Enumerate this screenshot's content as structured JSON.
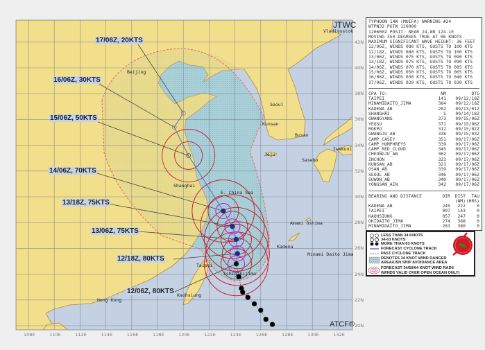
{
  "brand": {
    "top": "JTWC",
    "bottom": "ATCF®"
  },
  "warning": {
    "lines": [
      "TYPHOON 14W (MUIFA) WARNING #24",
      "WTPN32 PGTW 120900",
      "120600Z POSIT: NEAR 24.8N 124.1E",
      "MOVING 350 DEGREES TRUE AT 06 KNOTS",
      "MAXIMUM SIGNIFICANT WAVE HEIGHT: 36 FEET",
      "12/06Z, WINDS 080 KTS, GUSTS TO 100 KTS",
      "12/18Z, WINDS 080 KTS, GUSTS TO 100 KTS",
      "13/06Z, WINDS 075 KTS, GUSTS TO 090 KTS",
      "13/18Z, WINDS 075 KTS, GUSTS TO 090 KTS",
      "14/06Z, WINDS 070 KTS, GUSTS TO 085 KTS",
      "15/06Z, WINDS 050 KTS, GUSTS TO 065 KTS",
      "16/06Z, WINDS 030 KTS, GUSTS TO 040 KTS",
      "17/06Z, WINDS 020 KTS, GUSTS TO 030 KTS"
    ]
  },
  "cpa": {
    "headers": [
      "CPA TO:",
      "NM",
      "DTG"
    ],
    "rows": [
      [
        "TAIPEI",
        "141",
        "09/12/18Z"
      ],
      [
        "MINAMIDAITO_JIMA",
        "384",
        "09/12/18Z"
      ],
      [
        "KADENA_AB",
        "202",
        "09/13/01Z"
      ],
      [
        "SHANGHAI",
        "5",
        "09/14/18Z"
      ],
      [
        "GWANGYANG",
        "373",
        "09/15/06Z"
      ],
      [
        "YEOSU",
        "371",
        "09/15/06Z"
      ],
      [
        "MOKPO",
        "312",
        "09/15/02Z"
      ],
      [
        "GWANGJU_AB",
        "338",
        "09/15/03Z"
      ],
      [
        "CAMP_CASEY",
        "351",
        "09/17/06Z"
      ],
      [
        "CAMP_HUMPHREYS",
        "339",
        "09/17/06Z"
      ],
      [
        "CAMP_RED_CLOUD",
        "345",
        "09/17/06Z"
      ],
      [
        "CHEONGJU_AB",
        "362",
        "09/17/06Z"
      ],
      [
        "INCHON",
        "323",
        "09/17/06Z"
      ],
      [
        "KUNSAN_AB",
        "321",
        "09/17/06Z"
      ],
      [
        "OSAN_AB",
        "339",
        "09/17/06Z"
      ],
      [
        "SEOUL_AB",
        "346",
        "09/17/06Z"
      ],
      [
        "SUWON_AB",
        "340",
        "09/17/06Z"
      ],
      [
        "YONGSAN_AIN",
        "342",
        "09/17/06Z"
      ]
    ]
  },
  "bearing": {
    "headers": [
      "BEARING AND DISTANCE",
      "DIR",
      "DIST",
      "TAU"
    ],
    "subheaders": [
      "",
      "",
      "(NM)",
      "(HRS)"
    ],
    "rows": [
      [
        "KADENA_AB",
        "245",
        "222",
        "0"
      ],
      [
        "TAIPEI",
        "097",
        "143",
        "0"
      ],
      [
        "KAOHSIUNG",
        "057",
        "247",
        "0"
      ],
      [
        "OKIDAITO_JIMA",
        "274",
        "388",
        "0"
      ],
      [
        "MINAMIDAITO_JIMA",
        "263",
        "380",
        "0"
      ]
    ]
  },
  "legend": {
    "items": [
      "LESS THAN 34 KNOTS",
      "34-63 KNOTS",
      "MORE THAN 63 KNOTS",
      "FORECAST CYCLONE TRACK",
      "PAST CYCLONE TRACK",
      "DENOTES 34 KNOT WIND DANGER",
      "AREA/USN SHIP AVOIDANCE AREA",
      "FORECAST 34/50/64 KNOT WIND RADII",
      "(WINDS VALID OVER OPEN OCEAN ONLY)"
    ],
    "logo_text": "JOINT TYPHOON WARNING CENTER"
  },
  "axes": {
    "lon_ticks": [
      "108E",
      "110E",
      "112E",
      "114E",
      "116E",
      "118E",
      "120E",
      "122E",
      "124E",
      "126E",
      "128E",
      "130E",
      "132E"
    ],
    "lat_ticks": [
      "20N",
      "22N",
      "24N",
      "26N",
      "28N",
      "30N",
      "32N",
      "34N",
      "36N",
      "38N",
      "40N",
      "42N"
    ]
  },
  "places": [
    "Vladivostok",
    "Beijing",
    "Seoul",
    "Kunsan",
    "Busan",
    "Jeju",
    "Sasebo",
    "Iwakuni",
    "Shanghai",
    "E. China Sea",
    "Amami Oshima",
    "Kadena",
    "Minami Daito Jima",
    "Taipei",
    "Ishigakijima",
    "Kaohsiung",
    "Hong Kong"
  ],
  "forecast": [
    {
      "label": "12/06Z, 80KTS",
      "lat": 24.8,
      "lon": 124.1,
      "intensity": "more-than-63"
    },
    {
      "label": "12/18Z, 80KTS",
      "lat": 25.6,
      "lon": 124.2,
      "intensity": "more-than-63"
    },
    {
      "label": "13/06Z, 75KTS",
      "lat": 26.7,
      "lon": 124.1,
      "intensity": "more-than-63"
    },
    {
      "label": "13/18Z, 75KTS",
      "lat": 27.7,
      "lon": 123.8,
      "intensity": "more-than-63"
    },
    {
      "label": "14/06Z, 70KTS",
      "lat": 28.9,
      "lon": 123.1,
      "intensity": "more-than-63"
    },
    {
      "label": "15/06Z, 50KTS",
      "lat": 33.2,
      "lon": 120.4,
      "intensity": "34-63"
    },
    {
      "label": "16/06Z, 30KTS",
      "lat": 35.4,
      "lon": 119.3,
      "intensity": "less-than-34"
    },
    {
      "label": "17/06Z, 20KTS",
      "lat": 36.5,
      "lon": 120.0,
      "intensity": "less-than-34"
    }
  ],
  "past_track": [
    {
      "lat": 23.8,
      "lon": 124.3
    },
    {
      "lat": 22.9,
      "lon": 124.5
    },
    {
      "lat": 22.6,
      "lon": 124.6
    },
    {
      "lat": 22.2,
      "lon": 125.0
    },
    {
      "lat": 21.7,
      "lon": 125.5
    },
    {
      "lat": 21.2,
      "lon": 126.0
    },
    {
      "lat": 20.5,
      "lon": 126.4
    },
    {
      "lat": 20.1,
      "lon": 126.9
    }
  ],
  "colors": {
    "land": "#f2df8c",
    "ocean": "#c3d1e3",
    "danger": "#a9d0d8",
    "radii": "#cc1f2e",
    "radii64": "#c02ad8",
    "storm": "#1d2a8a",
    "track": "#5f6fb0",
    "past": "#000000"
  }
}
